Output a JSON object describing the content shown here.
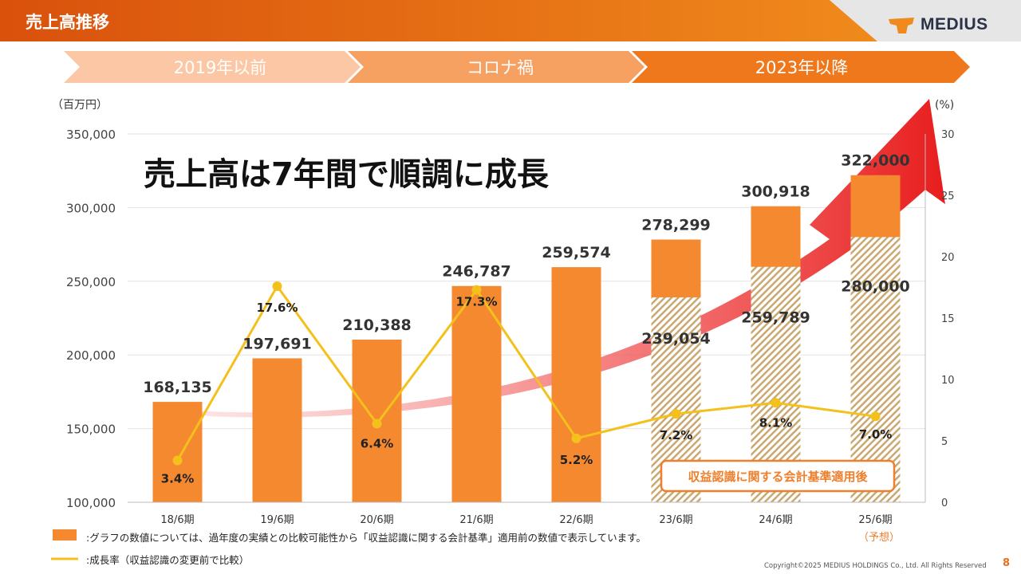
{
  "header": {
    "title": "売上高推移",
    "logo_text": "MEDIUS",
    "colors": {
      "start": "#d9510c",
      "end": "#f08a1c"
    }
  },
  "phases": [
    {
      "label": "2019年以前"
    },
    {
      "label": "コロナ禍"
    },
    {
      "label": "2023年以降"
    }
  ],
  "chart_data": {
    "type": "bar",
    "title": "売上高は7年間で順調に成長",
    "y_left_unit": "（百万円）",
    "y_right_unit": "(%)",
    "ylim": [
      100000,
      350000
    ],
    "ylim_right": [
      0,
      30
    ],
    "y_left_ticks": [
      "100,000",
      "150,000",
      "200,000",
      "250,000",
      "300,000",
      "350,000"
    ],
    "y_right_ticks": [
      "0",
      "5",
      "10",
      "15",
      "20",
      "25",
      "30"
    ],
    "categories": [
      "18/6期",
      "19/6期",
      "20/6期",
      "21/6期",
      "22/6期",
      "23/6期",
      "24/6期",
      "25/6期"
    ],
    "forecast_note": "（予想）",
    "series": [
      {
        "name": "売上高（基準適用前）",
        "values": [
          168135,
          197691,
          210388,
          246787,
          259574,
          278299,
          300918,
          322000
        ],
        "labels": [
          "168,135",
          "197,691",
          "210,388",
          "246,787",
          "259,574",
          "278,299",
          "300,918",
          "322,000"
        ]
      },
      {
        "name": "売上高（基準適用後）",
        "values": [
          null,
          null,
          null,
          null,
          null,
          239054,
          259789,
          280000
        ],
        "labels": [
          "",
          "",
          "",
          "",
          "",
          "239,054",
          "259,789",
          "280,000"
        ]
      },
      {
        "name": "成長率",
        "values": [
          3.4,
          17.6,
          6.4,
          17.3,
          5.2,
          7.2,
          8.1,
          7.0
        ],
        "labels": [
          "3.4%",
          "17.6%",
          "6.4%",
          "17.3%",
          "5.2%",
          "7.2%",
          "8.1%",
          "7.0%"
        ]
      }
    ],
    "annotation": "収益認識に関する会計基準適用後",
    "colors": {
      "bar": "#f5892f",
      "hatch": "#c9a872",
      "line": "#f4c01b",
      "arrow": "#e81d1d",
      "annotation": "#ef7f2a"
    }
  },
  "legend": {
    "bar_note": ":グラフの数値については、過年度の実績との比較可能性から「収益認識に関する会計基準」適用前の数値で表示しています。",
    "line_note": ":成長率（収益認識の変更前で比較）"
  },
  "footer": {
    "copyright": "Copyright©2025 MEDIUS HOLDINGS Co., Ltd. All Rights Reserved",
    "page_number": "8"
  }
}
